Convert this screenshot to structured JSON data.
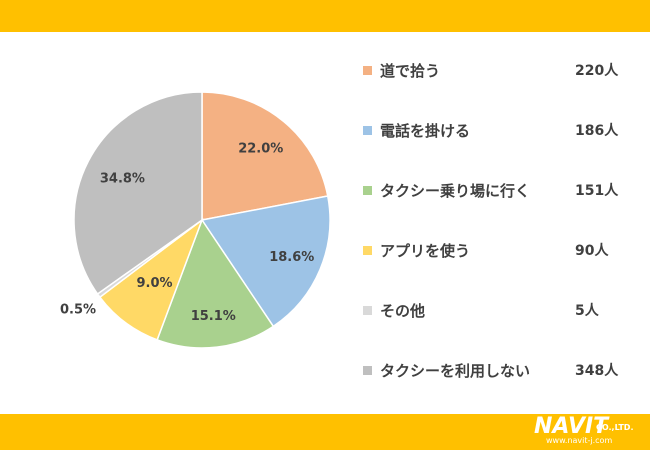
{
  "chart_data": {
    "type": "pie",
    "categories": [
      "道で拾う",
      "電話を掛ける",
      "タクシー乗り場に行く",
      "アプリを使う",
      "その他",
      "タクシーを利用しない"
    ],
    "values": [
      22.0,
      18.6,
      15.1,
      9.0,
      0.5,
      34.8
    ],
    "value_labels": [
      "22.0%",
      "18.6%",
      "15.1%",
      "9.0%",
      "0.5%",
      "34.8%"
    ],
    "counts": [
      "220人",
      "186人",
      "151人",
      "90人",
      "5人",
      "348人"
    ],
    "colors": [
      "#F4B183",
      "#9DC3E6",
      "#A9D18E",
      "#FFD966",
      "#D9D9D9",
      "#BFBFBF"
    ],
    "legend_position": "right",
    "start": "12 o'clock",
    "direction": "clockwise"
  },
  "logo": {
    "brand": "NAVIT",
    "suffix": "CO.,LTD.",
    "url": "www.navit-j.com"
  },
  "theme": {
    "band_color": "#FFC000"
  }
}
